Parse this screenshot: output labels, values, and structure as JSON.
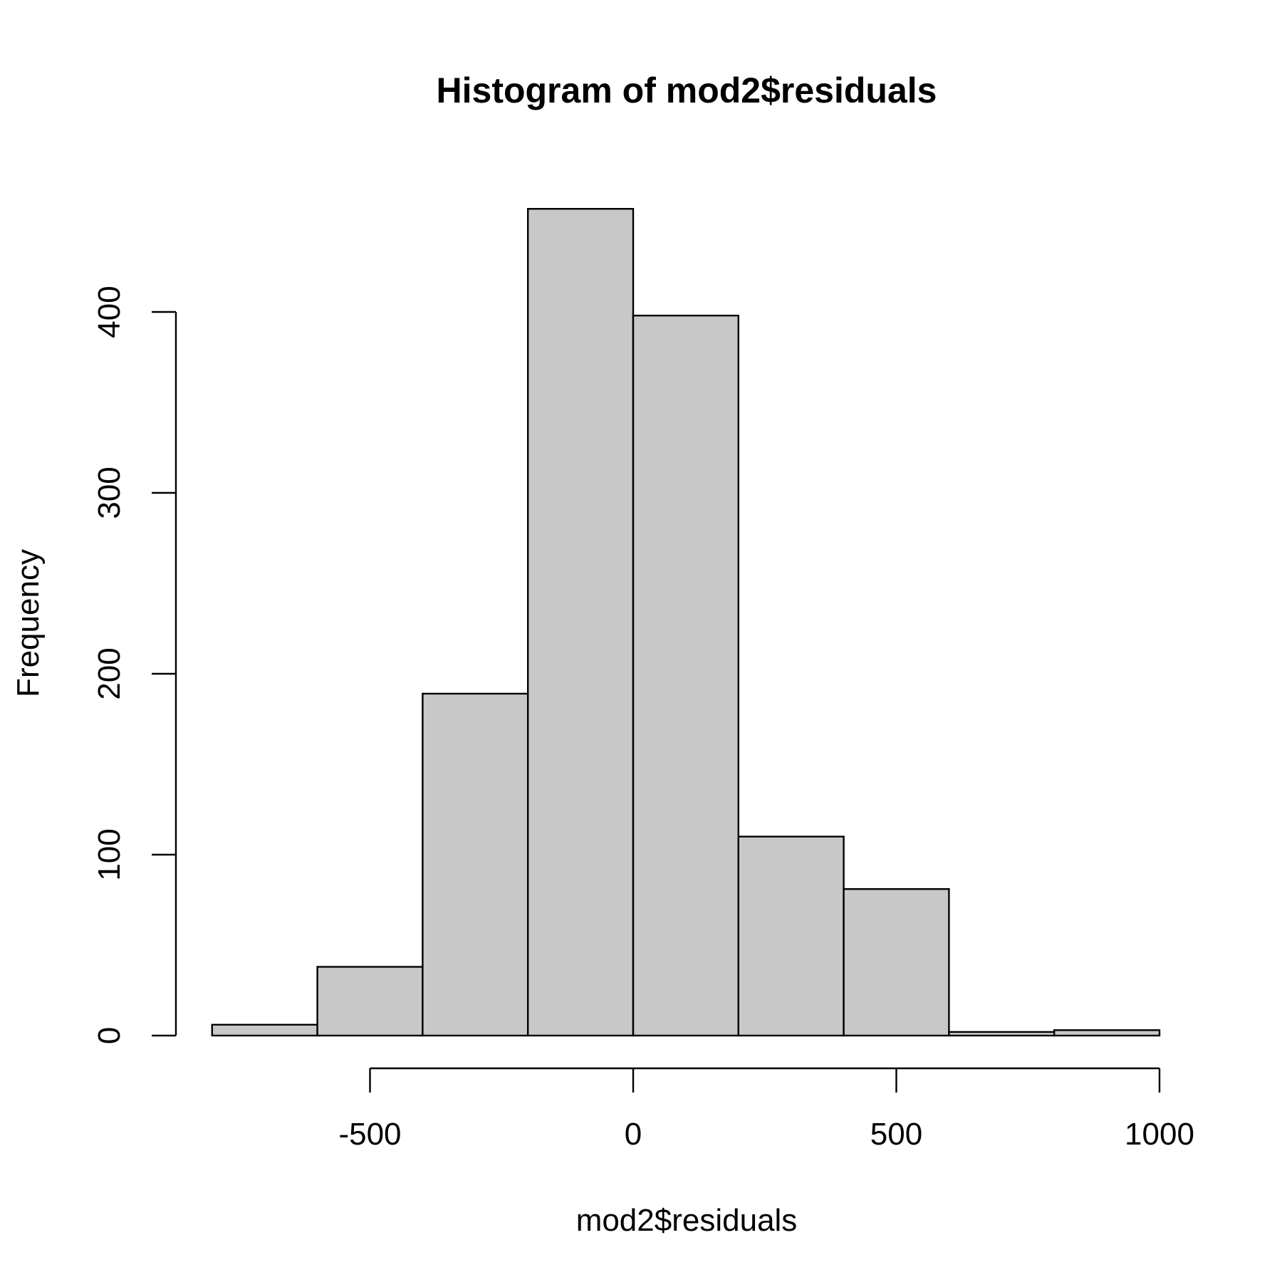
{
  "chart_data": {
    "type": "bar",
    "title": "Histogram of mod2$residuals",
    "xlabel": "mod2$residuals",
    "ylabel": "Frequency",
    "bins": [
      {
        "from": -800,
        "to": -600,
        "count": 6
      },
      {
        "from": -600,
        "to": -400,
        "count": 38
      },
      {
        "from": -400,
        "to": -200,
        "count": 189
      },
      {
        "from": -200,
        "to": 0,
        "count": 457
      },
      {
        "from": 0,
        "to": 200,
        "count": 398
      },
      {
        "from": 200,
        "to": 400,
        "count": 110
      },
      {
        "from": 400,
        "to": 600,
        "count": 81
      },
      {
        "from": 600,
        "to": 800,
        "count": 2
      },
      {
        "from": 800,
        "to": 1000,
        "count": 3
      }
    ],
    "x_ticks": [
      -500,
      0,
      500,
      1000
    ],
    "x_tick_labels": [
      "-500",
      "0",
      "500",
      "1000"
    ],
    "y_ticks": [
      0,
      100,
      200,
      300,
      400
    ],
    "y_tick_labels": [
      "0",
      "100",
      "200",
      "300",
      "400"
    ],
    "xlim": [
      -800,
      1000
    ],
    "ylim": [
      0,
      457
    ],
    "bar_color": "#c8c8c8",
    "grid": false
  }
}
